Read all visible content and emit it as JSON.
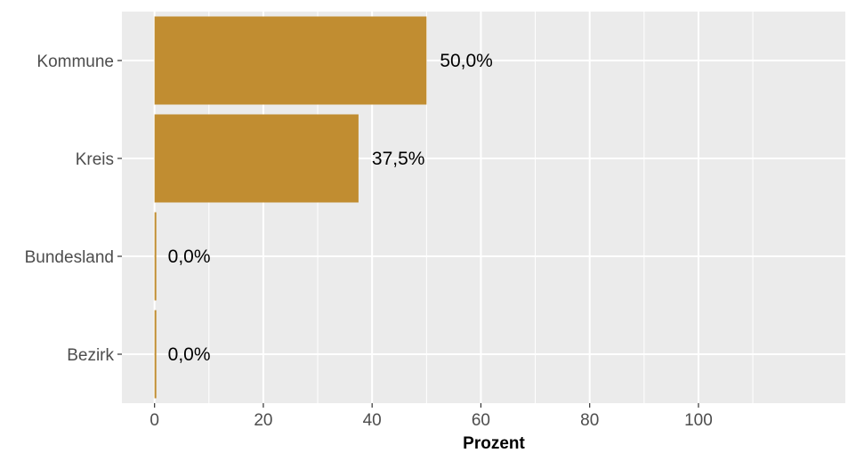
{
  "chart_data": {
    "type": "bar",
    "orientation": "horizontal",
    "categories": [
      "Kommune",
      "Kreis",
      "Bundesland",
      "Bezirk"
    ],
    "values": [
      50.0,
      37.5,
      0.0,
      0.0
    ],
    "data_labels": [
      "50,0%",
      "37,5%",
      "0,0%",
      "0,0%"
    ],
    "xlabel": "Prozent",
    "ylabel": "",
    "title": "",
    "xlim": [
      -6,
      127
    ],
    "x_ticks": [
      0,
      20,
      40,
      60,
      80,
      100
    ],
    "x_tick_labels": [
      "0",
      "20",
      "40",
      "60",
      "80",
      "100"
    ],
    "grid": true,
    "colors": {
      "bar": "#C18D31",
      "panel": "#EBEBEB",
      "grid": "#FFFFFF"
    }
  }
}
